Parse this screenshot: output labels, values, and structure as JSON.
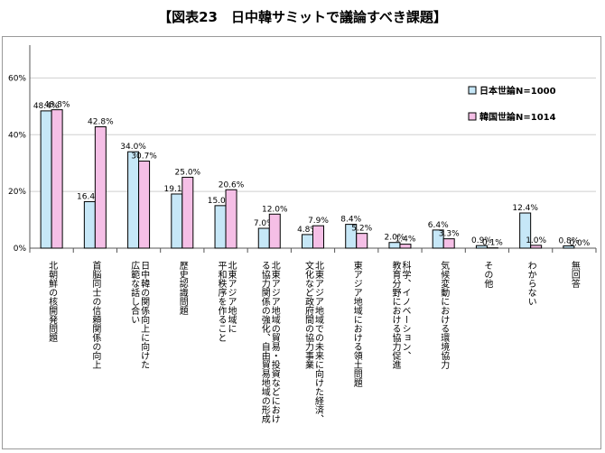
{
  "chart_data": {
    "type": "bar",
    "title": "【図表23　日中韓サミットで議論すべき課題】",
    "ylim": [
      0,
      70
    ],
    "yticks": [
      "0%",
      "20%",
      "40%",
      "60%"
    ],
    "grid": true,
    "legend_position": "top-right",
    "categories": [
      "北朝鮮の核開発問題",
      "首脳同士の信頼関係の向上",
      "日中韓の関係向上に向けた広範な話し合い",
      "歴史認識問題",
      "北東アジア地域に平和秩序を作ること",
      "北東アジア地域の貿易・投資などにおける協力関係の強化、自由貿易地域の形成",
      "北東アジア地域での未来に向けた経済、文化など政府間の協力事業",
      "東アジア地域における領土問題",
      "科学、イノベーション、教育分野における協力促進",
      "気候変動における環境協力",
      "その他",
      "わからない",
      "無回答"
    ],
    "category_lines": [
      [
        "北朝鮮の核開発問題"
      ],
      [
        "首脳同士の信頼関係の向上"
      ],
      [
        "日中韓の関係向上に向けた",
        "広範な話し合い"
      ],
      [
        "歴史認識問題"
      ],
      [
        "北東アジア地域に",
        "平和秩序を作ること"
      ],
      [
        "北東アジア地域の貿易・投資などにおけ",
        "る協力関係の強化、自由貿易地域の形成"
      ],
      [
        "北東アジア地域での未来に向けた経済、",
        "文化など政府間の協力事業"
      ],
      [
        "東アジア地域における領土問題"
      ],
      [
        "科学、イノベーション、",
        "教育分野における協力促進"
      ],
      [
        "気候変動における環境協力"
      ],
      [
        "その他"
      ],
      [
        "わからない"
      ],
      [
        "無回答"
      ]
    ],
    "series": [
      {
        "name": "日本世論N=1000",
        "color": "#c6e7f7",
        "values": [
          48.4,
          16.4,
          34.0,
          19.1,
          15.0,
          7.0,
          4.8,
          8.4,
          2.0,
          6.4,
          0.9,
          12.4,
          0.8
        ],
        "labels": [
          "48.4%",
          "16.4%",
          "34.0%",
          "19.1%",
          "15.0%",
          "7.0%",
          "4.8%",
          "8.4%",
          "2.0%",
          "6.4%",
          "0.9%",
          "12.4%",
          "0.8%"
        ]
      },
      {
        "name": "韓国世論N=1014",
        "color": "#f5bfe6",
        "values": [
          48.8,
          42.8,
          30.7,
          25.0,
          20.6,
          12.0,
          7.9,
          5.2,
          1.4,
          3.3,
          0.1,
          1.0,
          0.0
        ],
        "labels": [
          "48.8%",
          "42.8%",
          "30.7%",
          "25.0%",
          "20.6%",
          "12.0%",
          "7.9%",
          "5.2%",
          "1.4%",
          "3.3%",
          "0.1%",
          "1.0%",
          "0.0%"
        ]
      }
    ]
  }
}
